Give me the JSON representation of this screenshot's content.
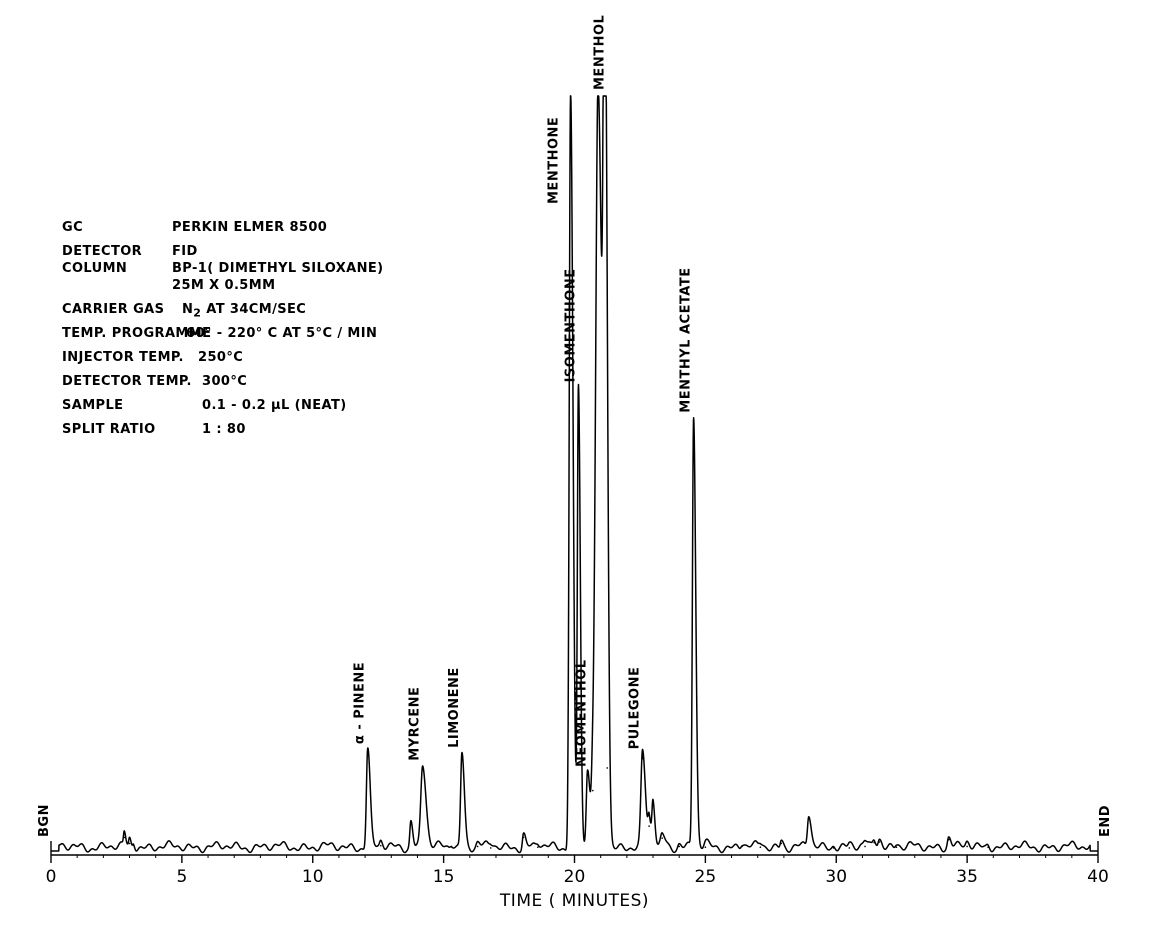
{
  "parameters": [
    {
      "label": "GC",
      "value": "PERKIN ELMER 8500"
    },
    {
      "label": "DETECTOR",
      "value": "FID"
    },
    {
      "label": "COLUMN",
      "value": "BP-1( DIMETHYL SILOXANE)"
    },
    {
      "label": "",
      "value": "25M X 0.5MM"
    },
    {
      "label": "CARRIER GAS",
      "value": "N",
      "sub": "2",
      "value_after": " AT 34CM/SEC"
    },
    {
      "label": "TEMP. PROGRAMME",
      "value": "60° - 220° C AT 5°C / MIN"
    },
    {
      "label": "INJECTOR TEMP.",
      "value": "250°C"
    },
    {
      "label": "DETECTOR TEMP.",
      "value": "300°C"
    },
    {
      "label": "SAMPLE",
      "value": "0.1 - 0.2  µL (NEAT)"
    },
    {
      "label": "SPLIT RATIO",
      "value": "1 : 80"
    }
  ],
  "chart_data": {
    "type": "line",
    "title": "",
    "xlabel": "TIME ( MINUTES)",
    "ylabel": "",
    "xlim": [
      0,
      40
    ],
    "ylim": [
      0,
      100
    ],
    "xticks": [
      0,
      5,
      10,
      15,
      20,
      25,
      30,
      35,
      40
    ],
    "grid": false,
    "start_label": "BGN",
    "end_label": "END",
    "peaks": [
      {
        "x": 2.8,
        "h": 1.8,
        "w": 0.03
      },
      {
        "x": 3.0,
        "h": 1.0,
        "w": 0.03
      },
      {
        "x": 3.15,
        "h": 0.8,
        "w": 0.03
      },
      {
        "x": 12.1,
        "h": 13.1,
        "w": 0.05
      },
      {
        "x": 12.6,
        "h": 0.7,
        "w": 0.04
      },
      {
        "x": 13.75,
        "h": 3.6,
        "w": 0.04
      },
      {
        "x": 14.2,
        "h": 10.9,
        "w": 0.07
      },
      {
        "x": 15.3,
        "h": 0.6,
        "w": 0.05
      },
      {
        "x": 15.7,
        "h": 12.6,
        "w": 0.05
      },
      {
        "x": 16.3,
        "h": 0.6,
        "w": 0.05
      },
      {
        "x": 16.8,
        "h": 0.4,
        "w": 0.05
      },
      {
        "x": 18.05,
        "h": 1.8,
        "w": 0.04
      },
      {
        "x": 18.6,
        "h": 0.5,
        "w": 0.05
      },
      {
        "x": 19.85,
        "h": 100,
        "w": 0.05
      },
      {
        "x": 20.15,
        "h": 61,
        "w": 0.04
      },
      {
        "x": 20.5,
        "h": 10.6,
        "w": 0.05
      },
      {
        "x": 20.7,
        "h": 8.0,
        "w": 0.05
      },
      {
        "x": 20.9,
        "h": 100,
        "w": 0.09
      },
      {
        "x": 21.15,
        "h": 100,
        "w": 0.05
      },
      {
        "x": 21.25,
        "h": 11.0,
        "w": 0.04
      },
      {
        "x": 22.6,
        "h": 12.4,
        "w": 0.06
      },
      {
        "x": 22.85,
        "h": 3.3,
        "w": 0.04
      },
      {
        "x": 23.0,
        "h": 6.2,
        "w": 0.04
      },
      {
        "x": 23.35,
        "h": 1.7,
        "w": 0.06
      },
      {
        "x": 24.0,
        "h": 0.6,
        "w": 0.05
      },
      {
        "x": 24.55,
        "h": 57,
        "w": 0.045
      },
      {
        "x": 25.0,
        "h": 0.5,
        "w": 0.05
      },
      {
        "x": 26.4,
        "h": 0.6,
        "w": 0.05
      },
      {
        "x": 27.1,
        "h": 0.5,
        "w": 0.05
      },
      {
        "x": 27.9,
        "h": 1.0,
        "w": 0.04
      },
      {
        "x": 28.95,
        "h": 4.3,
        "w": 0.05
      },
      {
        "x": 29.9,
        "h": 0.4,
        "w": 0.05
      },
      {
        "x": 30.5,
        "h": 0.4,
        "w": 0.05
      },
      {
        "x": 31.1,
        "h": 0.6,
        "w": 0.05
      },
      {
        "x": 31.45,
        "h": 1.1,
        "w": 0.05
      },
      {
        "x": 31.65,
        "h": 1.2,
        "w": 0.05
      },
      {
        "x": 32.3,
        "h": 0.5,
        "w": 0.05
      },
      {
        "x": 34.3,
        "h": 1.5,
        "w": 0.05
      },
      {
        "x": 35.0,
        "h": 0.6,
        "w": 0.05
      },
      {
        "x": 35.8,
        "h": 0.5,
        "w": 0.05
      }
    ],
    "labels": [
      {
        "text": "α - PINENE",
        "x": 12.1,
        "h": 13.1
      },
      {
        "text": "MYRCENE",
        "x": 14.2,
        "h": 10.9
      },
      {
        "text": "LIMONENE",
        "x": 15.7,
        "h": 12.6
      },
      {
        "text": "MENTHONE",
        "x": 19.85,
        "h": 100
      },
      {
        "text": "ISOMENTHONE",
        "x": 20.15,
        "h": 61
      },
      {
        "text": "NEOMENTHOL",
        "x": 20.5,
        "h": 10.6
      },
      {
        "text": "MENTHOL",
        "x": 20.95,
        "h": 100
      },
      {
        "text": "PULEGONE",
        "x": 22.6,
        "h": 12.4
      },
      {
        "text": "MENTHYL ACETATE",
        "x": 24.55,
        "h": 57
      }
    ]
  }
}
